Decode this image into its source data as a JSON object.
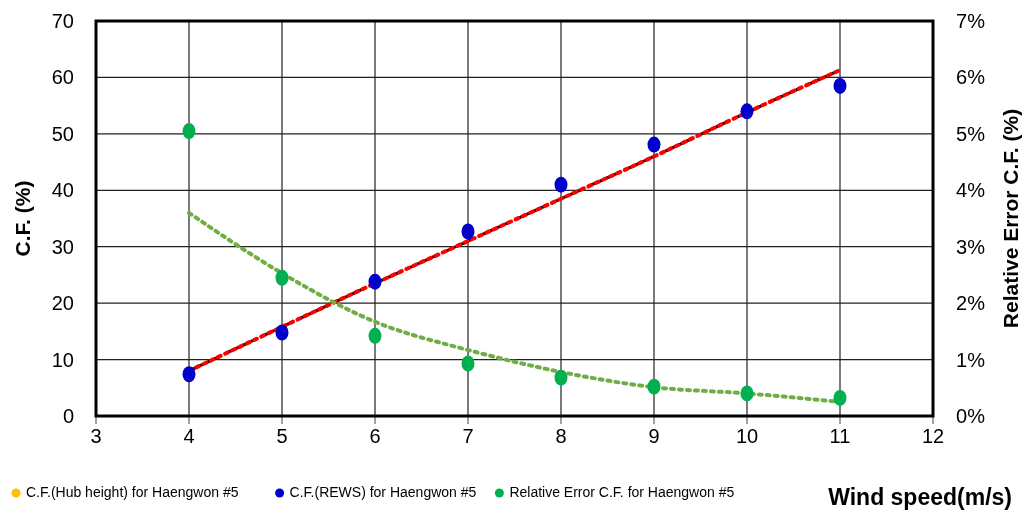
{
  "chart_data": {
    "type": "scatter",
    "xlabel": "Wind speed(m/s)",
    "ylabel": "C.F.  (%)",
    "y2label": "Relative  Error C.F.  (%)",
    "x": [
      4,
      5,
      6,
      7,
      8,
      9,
      10,
      11
    ],
    "xlim": [
      3,
      12
    ],
    "xticks": [
      3,
      4,
      5,
      6,
      7,
      8,
      9,
      10,
      11,
      12
    ],
    "ylim": [
      0,
      70
    ],
    "yticks": [
      0,
      10,
      20,
      30,
      40,
      50,
      60,
      70
    ],
    "y2lim": [
      0,
      7
    ],
    "y2ticks": [
      {
        "value": 0,
        "label": "0%"
      },
      {
        "value": 1,
        "label": "1%"
      },
      {
        "value": 2,
        "label": "2%"
      },
      {
        "value": 3,
        "label": "3%"
      },
      {
        "value": 4,
        "label": "4%"
      },
      {
        "value": 5,
        "label": "5%"
      },
      {
        "value": 6,
        "label": "6%"
      },
      {
        "value": 7,
        "label": "7%"
      }
    ],
    "grid": true,
    "legend": "bottom",
    "marker": "circle",
    "series": [
      {
        "type": "line",
        "color": "#000000",
        "line_style": "dashed",
        "marker": "none",
        "values": [
          8,
          15.8,
          23.5,
          31,
          38.5,
          46,
          53.8,
          61.3
        ]
      },
      {
        "type": "line",
        "color": "#ff0000",
        "line_style": "dotted",
        "marker": "none",
        "values": [
          8,
          15.8,
          23.5,
          31,
          38.5,
          46,
          53.8,
          61.3
        ]
      },
      {
        "type": "line",
        "color": "#70ad47",
        "line_style": "dotted",
        "marker": "none",
        "axis": "y2",
        "values": [
          3.6,
          2.53,
          1.67,
          1.17,
          0.78,
          0.51,
          0.4,
          0.25
        ]
      },
      {
        "name": "C.F.(Hub height) for Haengwon #5",
        "color": "#ffc000",
        "values": [
          null,
          null,
          null,
          null,
          null,
          null,
          null,
          null
        ]
      },
      {
        "name": "C.F.(REWS) for Haengwon #5",
        "color": "#0000cc",
        "values": [
          7.4,
          14.8,
          23.8,
          32.7,
          41,
          48.1,
          54,
          58.5
        ]
      },
      {
        "name": "Relative Error C.F. for Haengwon #5",
        "color": "#00b050",
        "axis": "y2",
        "values": [
          5.05,
          2.45,
          1.42,
          0.93,
          0.68,
          0.52,
          0.4,
          0.32
        ]
      }
    ]
  }
}
